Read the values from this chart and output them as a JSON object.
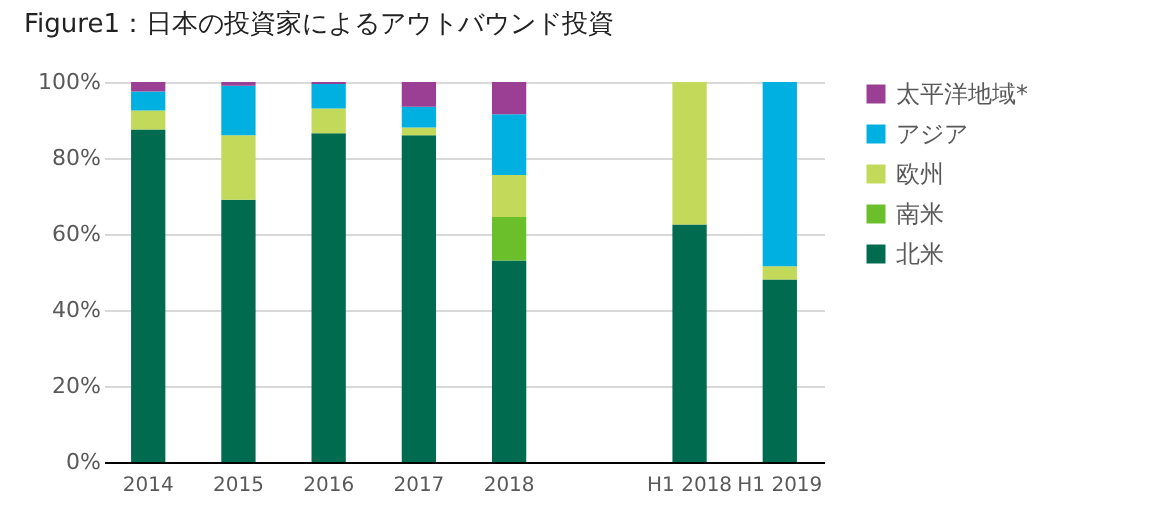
{
  "chart_data": {
    "type": "bar",
    "stacked": true,
    "title": "Figure1：日本の投資家によるアウトバウンド投資",
    "categories": [
      "2014",
      "2015",
      "2016",
      "2017",
      "2018",
      null,
      "H1 2018",
      "H1 2019"
    ],
    "series": [
      {
        "name": "北米",
        "color": "#006b4e",
        "values": [
          87.5,
          69,
          86.5,
          86,
          53,
          null,
          62.5,
          48
        ]
      },
      {
        "name": "南米",
        "color": "#6abf2a",
        "values": [
          0,
          0,
          0,
          0,
          11.5,
          null,
          0,
          0
        ]
      },
      {
        "name": "欧州",
        "color": "#c2d95a",
        "values": [
          5,
          17,
          6.5,
          2,
          11,
          null,
          37.5,
          3.5
        ]
      },
      {
        "name": "アジア",
        "color": "#00b0e0",
        "values": [
          5,
          13,
          6.5,
          5.5,
          16,
          null,
          0,
          48.5
        ]
      },
      {
        "name": "太平洋地域*",
        "color": "#9b3f95",
        "values": [
          2.5,
          1,
          0.5,
          6.5,
          8.5,
          null,
          0,
          0
        ]
      }
    ],
    "ylim": [
      0,
      100
    ],
    "yticks": [
      {
        "value": 0,
        "label": "0%"
      },
      {
        "value": 20,
        "label": "20%"
      },
      {
        "value": 40,
        "label": "40%"
      },
      {
        "value": 60,
        "label": "60%"
      },
      {
        "value": 80,
        "label": "80%"
      },
      {
        "value": 100,
        "label": "100%"
      }
    ],
    "grid": "y",
    "legend": "right"
  }
}
